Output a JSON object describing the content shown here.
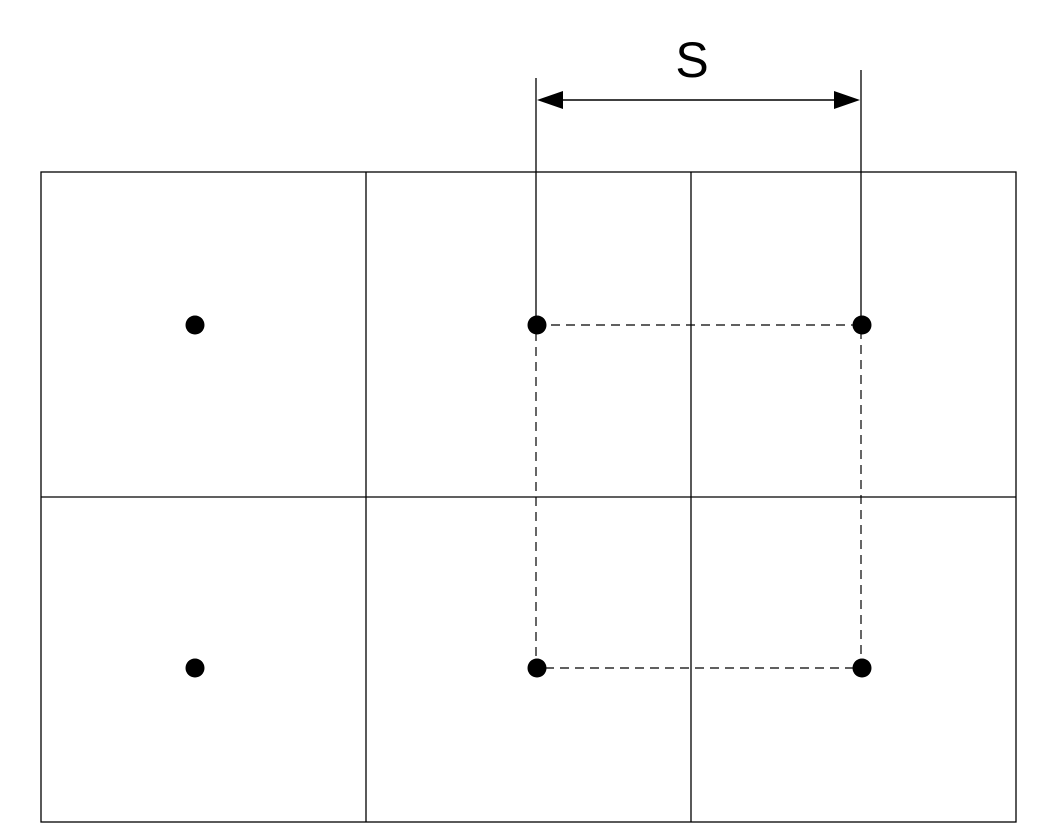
{
  "diagram": {
    "spacing_label": "S"
  },
  "colors": {
    "stroke": "#000000",
    "background": "#ffffff"
  }
}
